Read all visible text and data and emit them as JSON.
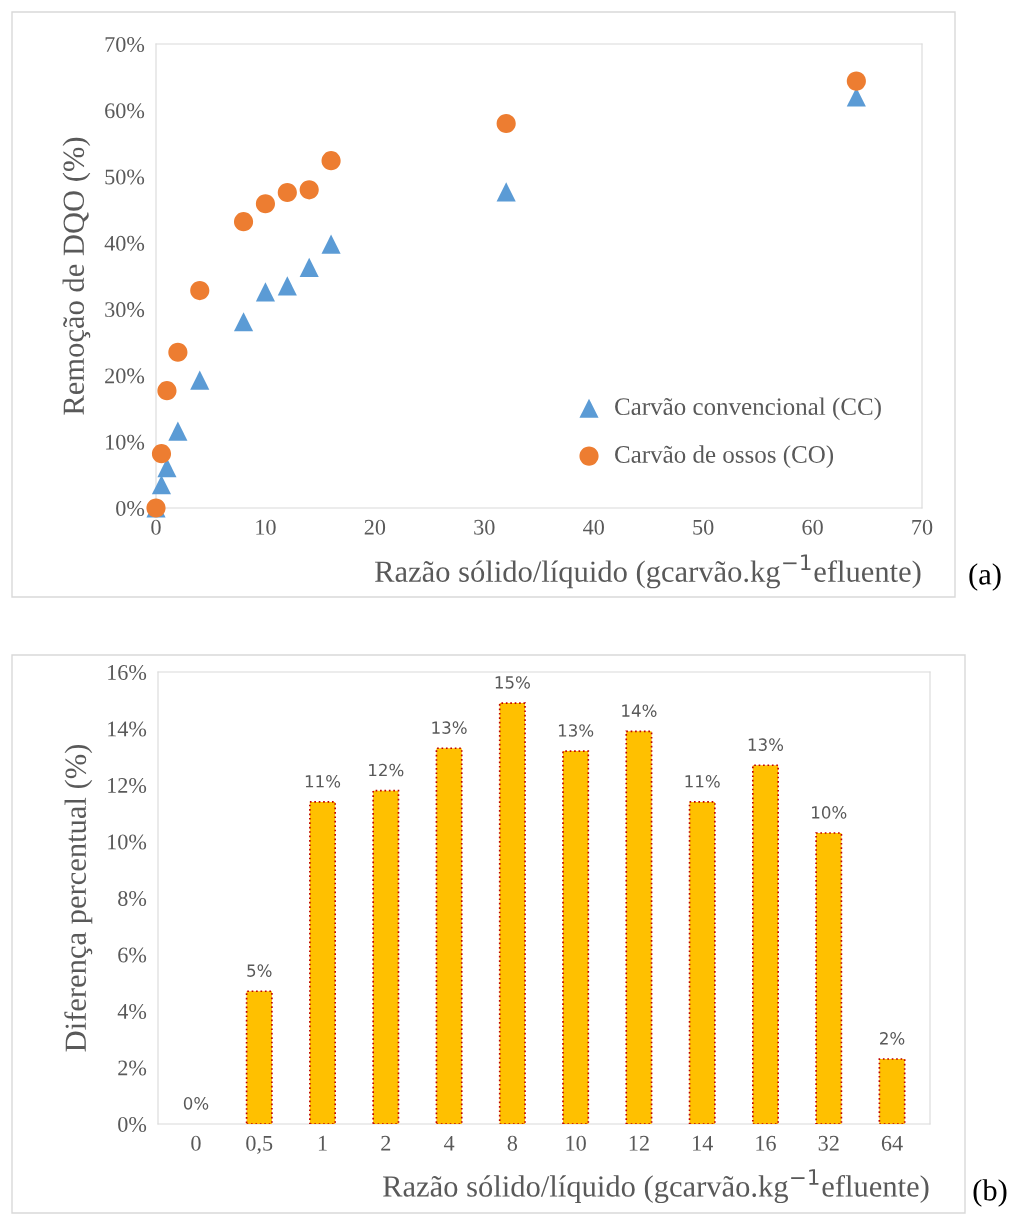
{
  "chart_data": [
    {
      "type": "scatter",
      "xlabel": "Razão sólido/líquido (gcarvão.kg$^{−1}$efluente)",
      "ylabel": "Remoção de DQO (%)",
      "x": [
        0,
        0.5,
        1,
        2,
        4,
        8,
        10,
        12,
        14,
        16,
        32,
        64
      ],
      "series": [
        {
          "name": "Carvão convencional (CC)",
          "color": "#5b9bd5",
          "marker": "triangle",
          "values": [
            0,
            3.5,
            6.1,
            11.6,
            19.3,
            28.1,
            32.6,
            33.5,
            36.3,
            39.8,
            47.7,
            62.0
          ]
        },
        {
          "name": "Carvão de ossos (CO)",
          "color": "#ed7d31",
          "marker": "circle",
          "values": [
            0,
            8.2,
            17.7,
            23.5,
            32.8,
            43.2,
            45.9,
            47.6,
            48.0,
            52.4,
            58.0,
            64.4
          ]
        }
      ],
      "xlim": [
        0,
        70
      ],
      "xticks": [
        0,
        10,
        20,
        30,
        40,
        50,
        60,
        70
      ],
      "ylim": [
        0,
        70
      ],
      "yticks": [
        {
          "value": 0,
          "label": "0%"
        },
        {
          "value": 10,
          "label": "10%"
        },
        {
          "value": 20,
          "label": "20%"
        },
        {
          "value": 30,
          "label": "30%"
        },
        {
          "value": 40,
          "label": "40%"
        },
        {
          "value": 50,
          "label": "50%"
        },
        {
          "value": 60,
          "label": "60%"
        },
        {
          "value": 70,
          "label": "70%"
        }
      ],
      "grid": false,
      "legend": "bottom right",
      "annotations": [
        "(a)"
      ]
    },
    {
      "type": "bar",
      "xlabel": "Razão sólido/líquido (gcarvão.kg$^{−1}$efluente)",
      "ylabel": "Diferença percentual (%)",
      "categories": [
        "0",
        "0,5",
        "1",
        "2",
        "4",
        "8",
        "10",
        "12",
        "14",
        "16",
        "32",
        "64"
      ],
      "values": [
        0,
        4.7,
        11.4,
        11.8,
        13.3,
        14.9,
        13.2,
        13.9,
        11.4,
        12.7,
        10.3,
        2.3
      ],
      "value_labels": [
        "0%",
        "5%",
        "11%",
        "12%",
        "13%",
        "15%",
        "13%",
        "14%",
        "11%",
        "13%",
        "10%",
        "2%"
      ],
      "color": "#ffc000",
      "ylim": [
        0,
        16
      ],
      "yticks": [
        {
          "value": 0,
          "label": "0%"
        },
        {
          "value": 2,
          "label": "2%"
        },
        {
          "value": 4,
          "label": "4%"
        },
        {
          "value": 6,
          "label": "6%"
        },
        {
          "value": 8,
          "label": "8%"
        },
        {
          "value": 10,
          "label": "10%"
        },
        {
          "value": 12,
          "label": "12%"
        },
        {
          "value": 14,
          "label": "14%"
        },
        {
          "value": 16,
          "label": "16%"
        }
      ],
      "grid": false,
      "annotations": [
        "(b)"
      ]
    }
  ]
}
